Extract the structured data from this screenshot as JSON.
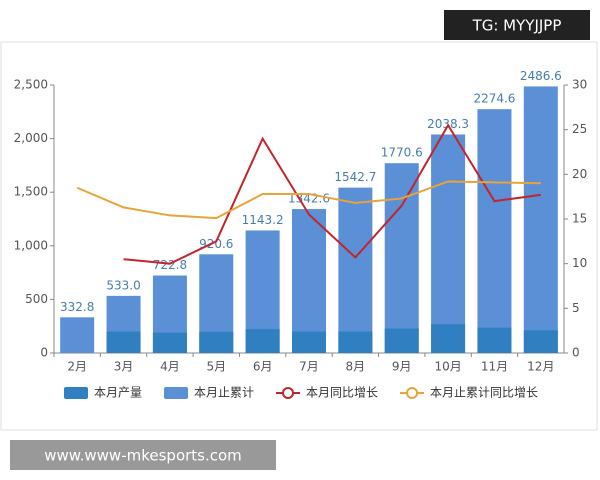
{
  "badge": "TG: MYYJJPP",
  "footer": "www.www-mkesports.com",
  "chart_data": {
    "type": "bar",
    "categories": [
      "2月",
      "3月",
      "4月",
      "5月",
      "6月",
      "7月",
      "8月",
      "9月",
      "10月",
      "11月",
      "12月"
    ],
    "series": [
      {
        "name": "本月止累计",
        "type": "bar",
        "color": "#5b8fd6",
        "label_color": "#4a7cab",
        "values": [
          332.8,
          533.0,
          722.8,
          920.6,
          1143.2,
          1342.6,
          1542.7,
          1770.6,
          2038.3,
          2274.6,
          2486.6
        ],
        "value_labels": [
          "332.8",
          "533.0",
          "722.8",
          "920.6",
          "1143.2",
          "1342.6",
          "1542.7",
          "1770.6",
          "2038.3",
          "2274.6",
          "2486.6"
        ]
      },
      {
        "name": "本月产量",
        "type": "bar",
        "color": "#2f7fc1",
        "values": [
          null,
          200.2,
          189.8,
          197.8,
          222.6,
          199.4,
          200.1,
          227.9,
          267.7,
          236.3,
          212.0
        ]
      },
      {
        "name": "本月同比增长",
        "type": "line",
        "axis": "y2",
        "color": "#c0272d",
        "values": [
          null,
          10.5,
          10.0,
          12.5,
          24.0,
          15.5,
          10.7,
          16.5,
          25.5,
          17.0,
          17.7
        ]
      },
      {
        "name": "本月止累计同比增长",
        "type": "line",
        "axis": "y2",
        "color": "#e8a33a",
        "values": [
          18.5,
          16.3,
          15.4,
          15.1,
          17.8,
          17.8,
          16.8,
          17.3,
          19.2,
          19.1,
          19.0
        ]
      }
    ],
    "legend_order": [
      1,
      0,
      2,
      3
    ],
    "ylim": [
      0,
      2500
    ],
    "yticks": [
      0,
      500,
      {
        "value": 1000,
        "label": "1,000"
      },
      {
        "value": 1500,
        "label": "1,500"
      },
      {
        "value": 2000,
        "label": "2,000"
      },
      {
        "value": 2500,
        "label": "2,500"
      }
    ],
    "y2lim": [
      0,
      30
    ],
    "y2ticks": [
      0,
      5,
      10,
      15,
      20,
      25,
      30
    ]
  }
}
